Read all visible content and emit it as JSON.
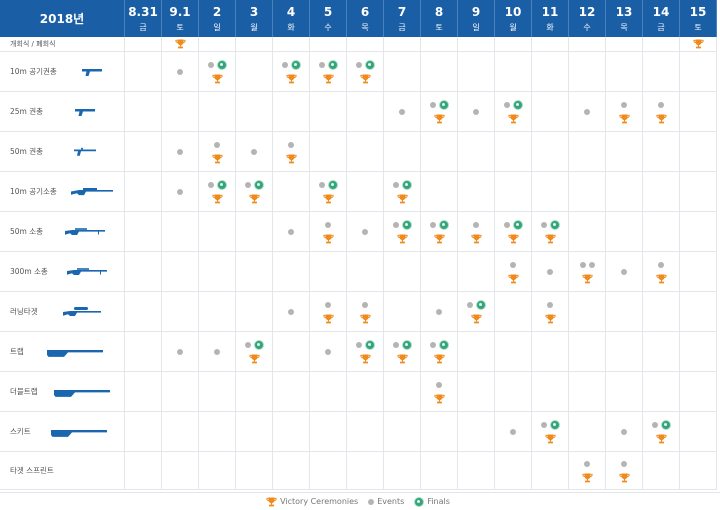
{
  "header": {
    "year_label": "2018년",
    "dates": [
      {
        "day": "8.31",
        "weekday": "금"
      },
      {
        "day": "9.1",
        "weekday": "토"
      },
      {
        "day": "2",
        "weekday": "일"
      },
      {
        "day": "3",
        "weekday": "월"
      },
      {
        "day": "4",
        "weekday": "화"
      },
      {
        "day": "5",
        "weekday": "수"
      },
      {
        "day": "6",
        "weekday": "목"
      },
      {
        "day": "7",
        "weekday": "금"
      },
      {
        "day": "8",
        "weekday": "토"
      },
      {
        "day": "9",
        "weekday": "일"
      },
      {
        "day": "10",
        "weekday": "월"
      },
      {
        "day": "11",
        "weekday": "화"
      },
      {
        "day": "12",
        "weekday": "수"
      },
      {
        "day": "13",
        "weekday": "목"
      },
      {
        "day": "14",
        "weekday": "금"
      },
      {
        "day": "15",
        "weekday": "토"
      }
    ]
  },
  "rows": [
    {
      "label": "개회식 / 폐회식",
      "icon": "",
      "cells": [
        [],
        [
          "T"
        ],
        [],
        [],
        [],
        [],
        [],
        [],
        [],
        [],
        [],
        [],
        [],
        [],
        [],
        [
          "T"
        ]
      ]
    },
    {
      "label": "10m 공기권총",
      "icon": "pistol-icon",
      "cells": [
        [],
        [
          "E"
        ],
        [
          "E",
          "F",
          "T"
        ],
        [],
        [
          "E",
          "F",
          "T"
        ],
        [
          "E",
          "F",
          "T"
        ],
        [
          "E",
          "F",
          "T"
        ],
        [],
        [],
        [],
        [],
        [],
        [],
        [],
        [],
        []
      ]
    },
    {
      "label": "25m 권총",
      "icon": "pistol-icon",
      "cells": [
        [],
        [],
        [],
        [],
        [],
        [],
        [],
        [
          "E"
        ],
        [
          "E",
          "F",
          "T"
        ],
        [
          "E"
        ],
        [
          "E",
          "F",
          "T"
        ],
        [],
        [
          "E"
        ],
        [
          "E",
          "T"
        ],
        [
          "E",
          "T"
        ],
        []
      ]
    },
    {
      "label": "50m 권총",
      "icon": "free-pistol-icon",
      "cells": [
        [],
        [
          "E"
        ],
        [
          "E",
          "T"
        ],
        [
          "E"
        ],
        [
          "E",
          "T"
        ],
        [],
        [],
        [],
        [],
        [],
        [],
        [],
        [],
        [],
        [],
        []
      ]
    },
    {
      "label": "10m 공기소총",
      "icon": "air-rifle-icon",
      "cells": [
        [],
        [
          "E"
        ],
        [
          "E",
          "F",
          "T"
        ],
        [
          "E",
          "F",
          "T"
        ],
        [],
        [
          "E",
          "F",
          "T"
        ],
        [],
        [
          "E",
          "F",
          "T"
        ],
        [],
        [],
        [],
        [],
        [],
        [],
        [],
        []
      ]
    },
    {
      "label": "50m 소총",
      "icon": "rifle-icon",
      "cells": [
        [],
        [],
        [],
        [],
        [
          "E"
        ],
        [
          "E",
          "T"
        ],
        [
          "E"
        ],
        [
          "E",
          "F",
          "T"
        ],
        [
          "E",
          "F",
          "T"
        ],
        [
          "E",
          "T"
        ],
        [
          "E",
          "F",
          "T"
        ],
        [
          "E",
          "F",
          "T"
        ],
        [],
        [],
        [],
        []
      ]
    },
    {
      "label": "300m 소총",
      "icon": "rifle-icon",
      "cells": [
        [],
        [],
        [],
        [],
        [],
        [],
        [],
        [],
        [],
        [],
        [
          "E",
          "T"
        ],
        [
          "E"
        ],
        [
          "E",
          "E",
          "T"
        ],
        [
          "E"
        ],
        [
          "E",
          "T"
        ],
        []
      ]
    },
    {
      "label": "러닝타겟",
      "icon": "running-target-rifle-icon",
      "cells": [
        [],
        [],
        [],
        [],
        [
          "E"
        ],
        [
          "E",
          "T"
        ],
        [
          "E",
          "T"
        ],
        [],
        [
          "E"
        ],
        [
          "E",
          "F",
          "T"
        ],
        [],
        [
          "E",
          "T"
        ],
        [],
        [],
        [],
        []
      ]
    },
    {
      "label": "트랩",
      "icon": "shotgun-icon",
      "cells": [
        [],
        [
          "E"
        ],
        [
          "E"
        ],
        [
          "E",
          "F",
          "T"
        ],
        [],
        [
          "E"
        ],
        [
          "E",
          "F",
          "T"
        ],
        [
          "E",
          "F",
          "T"
        ],
        [
          "E",
          "F",
          "T"
        ],
        [],
        [],
        [],
        [],
        [],
        [],
        []
      ]
    },
    {
      "label": "더블트랩",
      "icon": "shotgun-icon",
      "cells": [
        [],
        [],
        [],
        [],
        [],
        [],
        [],
        [],
        [
          "E",
          "T"
        ],
        [],
        [],
        [],
        [],
        [],
        [],
        []
      ]
    },
    {
      "label": "스키트",
      "icon": "shotgun-icon",
      "cells": [
        [],
        [],
        [],
        [],
        [],
        [],
        [],
        [],
        [],
        [],
        [
          "E"
        ],
        [
          "E",
          "F",
          "T"
        ],
        [],
        [
          "E"
        ],
        [
          "E",
          "F",
          "T"
        ],
        []
      ]
    },
    {
      "label": "타겟 스프린트",
      "icon": "",
      "cells": [
        [],
        [],
        [],
        [],
        [],
        [],
        [],
        [],
        [],
        [],
        [],
        [],
        [
          "E",
          "T"
        ],
        [
          "E",
          "T"
        ],
        [],
        []
      ]
    }
  ],
  "legend": {
    "ceremonies": "Victory Ceremonies",
    "events": "Events",
    "finals": "Finals"
  },
  "colors": {
    "header_bg": "#1a5ea6",
    "gun_blue": "#1a67b0",
    "trophy": "#f08a1c",
    "event_dot": "#b4b4b4",
    "finals": "#34a57a"
  }
}
